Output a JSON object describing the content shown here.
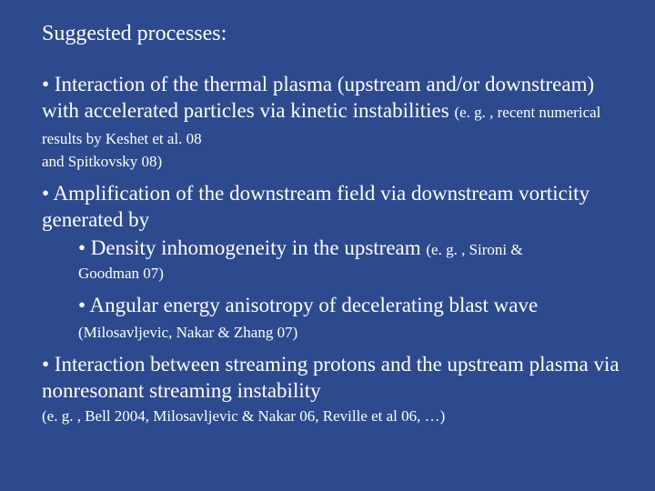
{
  "colors": {
    "background": "#2e4a8f",
    "text": "#ffffff"
  },
  "typography": {
    "font_family": "Georgia, Times New Roman, serif",
    "title_size": 24,
    "body_size": 23,
    "cite_size": 17
  },
  "title": "Suggested processes:",
  "bullets": {
    "b1_part1": "• Interaction of the thermal plasma (upstream and/or downstream) with accelerated particles via kinetic instabilities ",
    "b1_cite1": "(e. g. , recent numerical results by Keshet et al. 08",
    "b1_cite2": "and Spitkovsky 08)",
    "b2": "• Amplification of the downstream field via downstream vorticity generated by",
    "b2_sub1": "• Density inhomogeneity in the upstream ",
    "b2_sub1_cite": "(e. g. , Sironi &",
    "b2_sub1_cite2": "Goodman 07)",
    "b2_sub2": "• Angular energy anisotropy of decelerating blast wave ",
    "b2_sub2_cite": "(Milosavljevic, Nakar  & Zhang 07)",
    "b3": "• Interaction between streaming protons and the upstream plasma via nonresonant streaming instability",
    "b3_cite": "(e. g. , Bell 2004, Milosavljevic & Nakar 06, Reville et al 06, …)"
  }
}
